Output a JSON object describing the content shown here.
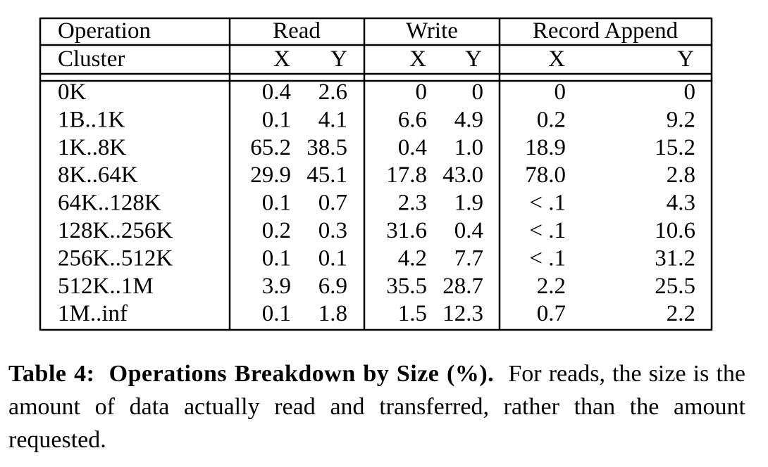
{
  "table": {
    "header": [
      [
        "Operation",
        "Read",
        "Write",
        "Record Append"
      ],
      [
        "Cluster",
        "X",
        "Y",
        "X",
        "Y",
        "X",
        "Y"
      ]
    ],
    "rows": [
      [
        "0K",
        "0.4",
        "2.6",
        "0",
        "0",
        "0",
        "0"
      ],
      [
        "1B..1K",
        "0.1",
        "4.1",
        "6.6",
        "4.9",
        "0.2",
        "9.2"
      ],
      [
        "1K..8K",
        "65.2",
        "38.5",
        "0.4",
        "1.0",
        "18.9",
        "15.2"
      ],
      [
        "8K..64K",
        "29.9",
        "45.1",
        "17.8",
        "43.0",
        "78.0",
        "2.8"
      ],
      [
        "64K..128K",
        "0.1",
        "0.7",
        "2.3",
        "1.9",
        "< .1",
        "4.3"
      ],
      [
        "128K..256K",
        "0.2",
        "0.3",
        "31.6",
        "0.4",
        "< .1",
        "10.6"
      ],
      [
        "256K..512K",
        "0.1",
        "0.1",
        "4.2",
        "7.7",
        "< .1",
        "31.2"
      ],
      [
        "512K..1M",
        "3.9",
        "6.9",
        "35.5",
        "28.7",
        "2.2",
        "25.5"
      ],
      [
        "1M..inf",
        "0.1",
        "1.8",
        "1.5",
        "12.3",
        "0.7",
        "2.2"
      ]
    ]
  },
  "caption": {
    "label": "Table 4:",
    "title": "Operations Breakdown by Size (%).",
    "text": "For reads, the size is the amount of data actually read and transferred, rather than the amount requested."
  }
}
